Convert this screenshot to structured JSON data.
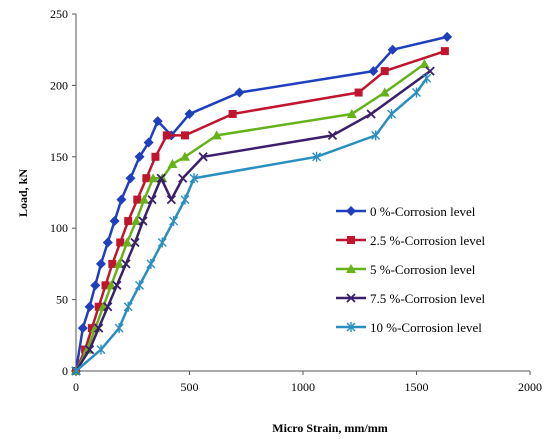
{
  "chart_data": {
    "type": "line",
    "title": "",
    "xlabel": "Micro Strain, mm/mm",
    "ylabel": "Load, kN",
    "xlim": [
      0,
      2000
    ],
    "ylim": [
      0,
      250
    ],
    "xticks": [
      "0",
      "500",
      "1000",
      "1500",
      "2000"
    ],
    "yticks": [
      "0",
      "50",
      "100",
      "150",
      "200",
      "250"
    ],
    "grid": false,
    "legend_position": "right",
    "series": [
      {
        "name": "0 %-Corrosion level",
        "color": "#1f3fbf",
        "marker": "diamond",
        "x": [
          0,
          30,
          60,
          85,
          110,
          140,
          170,
          200,
          240,
          280,
          320,
          360,
          420,
          500,
          720,
          1310,
          1395,
          1635
        ],
        "y": [
          0,
          30,
          45,
          60,
          75,
          90,
          105,
          120,
          135,
          150,
          160,
          175,
          165,
          180,
          195,
          210,
          225,
          234
        ]
      },
      {
        "name": "2.5 %-Corrosion level",
        "color": "#c0142f",
        "marker": "square",
        "x": [
          0,
          40,
          70,
          100,
          130,
          160,
          195,
          230,
          270,
          310,
          350,
          400,
          480,
          690,
          1245,
          1360,
          1625
        ],
        "y": [
          0,
          15,
          30,
          45,
          60,
          75,
          90,
          105,
          120,
          135,
          150,
          165,
          165,
          180,
          195,
          210,
          224
        ]
      },
      {
        "name": "5 %-Corrosion level",
        "color": "#66b21a",
        "marker": "triangle",
        "x": [
          0,
          50,
          85,
          120,
          155,
          190,
          225,
          265,
          300,
          340,
          380,
          425,
          480,
          620,
          1215,
          1360,
          1535
        ],
        "y": [
          0,
          15,
          30,
          45,
          60,
          75,
          90,
          105,
          120,
          135,
          135,
          145,
          150,
          165,
          180,
          195,
          215
        ]
      },
      {
        "name": "7.5 %-Corrosion level",
        "color": "#3a1f6b",
        "marker": "x",
        "x": [
          0,
          60,
          100,
          140,
          180,
          220,
          260,
          295,
          335,
          375,
          420,
          470,
          560,
          1130,
          1300,
          1560
        ],
        "y": [
          0,
          15,
          30,
          45,
          60,
          75,
          90,
          105,
          120,
          135,
          120,
          135,
          150,
          165,
          180,
          210
        ]
      },
      {
        "name": "10 %-Corrosion level",
        "color": "#2a8ec0",
        "marker": "star",
        "x": [
          0,
          110,
          190,
          230,
          280,
          330,
          380,
          430,
          480,
          520,
          1060,
          1320,
          1390,
          1500,
          1545
        ],
        "y": [
          0,
          15,
          30,
          45,
          60,
          75,
          90,
          105,
          120,
          135,
          150,
          165,
          180,
          195,
          205
        ]
      }
    ]
  }
}
